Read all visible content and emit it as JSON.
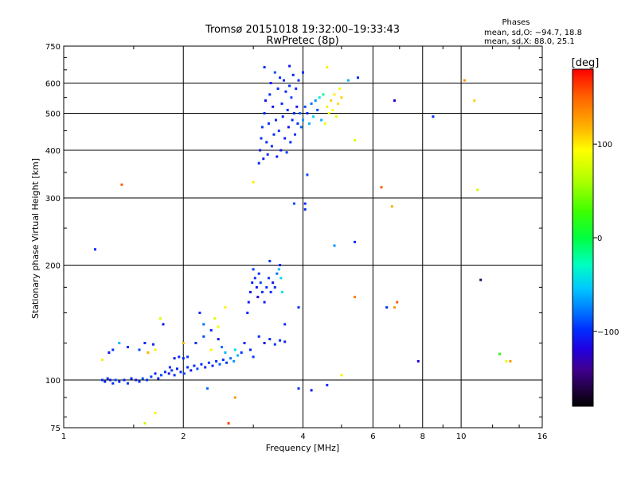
{
  "title": {
    "line1": "Tromsø 20151018 19:32:00–19:33:43",
    "line2": "RwPretec (8p)"
  },
  "phases_box": {
    "heading": "Phases",
    "line_o": "mean, sd,O: −94.7, 18.8",
    "line_x": "mean, sd,X:  88.0, 25.1"
  },
  "colorbar": {
    "unit_label": "[deg]",
    "range": [
      -180,
      180
    ],
    "ticks": [
      {
        "value": 100,
        "label": "100"
      },
      {
        "value": 0,
        "label": "0"
      },
      {
        "value": -100,
        "label": "−100"
      }
    ]
  },
  "chart_data": {
    "type": "scatter",
    "xlabel": "Frequency [MHz]",
    "ylabel": "Stationary phase Virtual Height [km]",
    "x_scale": "log",
    "y_scale": "log",
    "xlim": [
      1,
      16
    ],
    "ylim": [
      75,
      750
    ],
    "grid": true,
    "x_ticks": [
      {
        "value": 1,
        "label": "1"
      },
      {
        "value": 2,
        "label": "2"
      },
      {
        "value": 4,
        "label": "4"
      },
      {
        "value": 6,
        "label": "6"
      },
      {
        "value": 8,
        "label": "8"
      },
      {
        "value": 10,
        "label": "10"
      },
      {
        "value": 16,
        "label": "16"
      }
    ],
    "y_ticks": [
      {
        "value": 75,
        "label": "75"
      },
      {
        "value": 100,
        "label": "100"
      },
      {
        "value": 200,
        "label": "200"
      },
      {
        "value": 300,
        "label": "300"
      },
      {
        "value": 400,
        "label": "400"
      },
      {
        "value": 500,
        "label": "500"
      },
      {
        "value": 600,
        "label": "600"
      },
      {
        "value": 750,
        "label": "750"
      }
    ],
    "color_dimension": "phase [deg]",
    "points": [
      {
        "x": 1.25,
        "y": 100,
        "c": -100
      },
      {
        "x": 1.27,
        "y": 99,
        "c": -105
      },
      {
        "x": 1.29,
        "y": 101,
        "c": -95
      },
      {
        "x": 1.31,
        "y": 100,
        "c": -110
      },
      {
        "x": 1.33,
        "y": 98,
        "c": -100
      },
      {
        "x": 1.35,
        "y": 100,
        "c": -90
      },
      {
        "x": 1.38,
        "y": 99,
        "c": -100
      },
      {
        "x": 1.42,
        "y": 100,
        "c": -105
      },
      {
        "x": 1.45,
        "y": 98,
        "c": -95
      },
      {
        "x": 1.48,
        "y": 101,
        "c": -100
      },
      {
        "x": 1.52,
        "y": 100,
        "c": -110
      },
      {
        "x": 1.55,
        "y": 99,
        "c": -100
      },
      {
        "x": 1.58,
        "y": 101,
        "c": -85
      },
      {
        "x": 1.62,
        "y": 100,
        "c": -100
      },
      {
        "x": 1.66,
        "y": 102,
        "c": -95
      },
      {
        "x": 1.7,
        "y": 104,
        "c": -105
      },
      {
        "x": 1.73,
        "y": 101,
        "c": -100
      },
      {
        "x": 1.76,
        "y": 103,
        "c": -90
      },
      {
        "x": 1.8,
        "y": 105,
        "c": -100
      },
      {
        "x": 1.84,
        "y": 104,
        "c": -110
      },
      {
        "x": 1.87,
        "y": 106,
        "c": -95
      },
      {
        "x": 1.9,
        "y": 103,
        "c": -100
      },
      {
        "x": 1.93,
        "y": 107,
        "c": -105
      },
      {
        "x": 1.97,
        "y": 105,
        "c": -100
      },
      {
        "x": 2.01,
        "y": 104,
        "c": -95
      },
      {
        "x": 2.05,
        "y": 108,
        "c": -100
      },
      {
        "x": 2.09,
        "y": 106,
        "c": -110
      },
      {
        "x": 2.13,
        "y": 109,
        "c": -100
      },
      {
        "x": 2.17,
        "y": 107,
        "c": -90
      },
      {
        "x": 2.22,
        "y": 110,
        "c": -100
      },
      {
        "x": 2.27,
        "y": 108,
        "c": -105
      },
      {
        "x": 2.32,
        "y": 111,
        "c": -95
      },
      {
        "x": 2.37,
        "y": 109,
        "c": -100
      },
      {
        "x": 2.42,
        "y": 112,
        "c": -100
      },
      {
        "x": 2.47,
        "y": 110,
        "c": -85
      },
      {
        "x": 2.52,
        "y": 113,
        "c": -100
      },
      {
        "x": 2.57,
        "y": 111,
        "c": -95
      },
      {
        "x": 2.63,
        "y": 114,
        "c": -80
      },
      {
        "x": 2.68,
        "y": 112,
        "c": -70
      },
      {
        "x": 2.74,
        "y": 116,
        "c": -60
      },
      {
        "x": 1.9,
        "y": 114,
        "c": -110
      },
      {
        "x": 1.95,
        "y": 115,
        "c": -100
      },
      {
        "x": 2.0,
        "y": 114,
        "c": -105
      },
      {
        "x": 2.05,
        "y": 115,
        "c": -95
      },
      {
        "x": 1.3,
        "y": 118,
        "c": -110
      },
      {
        "x": 1.38,
        "y": 125,
        "c": -60
      },
      {
        "x": 1.45,
        "y": 122,
        "c": -100
      },
      {
        "x": 1.55,
        "y": 120,
        "c": -90
      },
      {
        "x": 1.6,
        "y": 125,
        "c": -100
      },
      {
        "x": 1.68,
        "y": 124,
        "c": -100
      },
      {
        "x": 1.75,
        "y": 145,
        "c": 80
      },
      {
        "x": 1.78,
        "y": 140,
        "c": -110
      },
      {
        "x": 2.15,
        "y": 125,
        "c": -100
      },
      {
        "x": 2.25,
        "y": 130,
        "c": -90
      },
      {
        "x": 2.35,
        "y": 135,
        "c": -100
      },
      {
        "x": 2.45,
        "y": 128,
        "c": -110
      },
      {
        "x": 2.5,
        "y": 122,
        "c": -80
      },
      {
        "x": 2.55,
        "y": 118,
        "c": -60
      },
      {
        "x": 2.7,
        "y": 120,
        "c": -50
      },
      {
        "x": 2.8,
        "y": 118,
        "c": -95
      },
      {
        "x": 2.85,
        "y": 125,
        "c": -100
      },
      {
        "x": 2.9,
        "y": 150,
        "c": -100
      },
      {
        "x": 2.92,
        "y": 160,
        "c": -105
      },
      {
        "x": 2.95,
        "y": 170,
        "c": -110
      },
      {
        "x": 2.98,
        "y": 180,
        "c": -100
      },
      {
        "x": 3.0,
        "y": 195,
        "c": -95
      },
      {
        "x": 3.03,
        "y": 185,
        "c": -100
      },
      {
        "x": 3.06,
        "y": 175,
        "c": -110
      },
      {
        "x": 3.08,
        "y": 165,
        "c": -120
      },
      {
        "x": 3.1,
        "y": 190,
        "c": -100
      },
      {
        "x": 3.13,
        "y": 180,
        "c": -90
      },
      {
        "x": 3.16,
        "y": 170,
        "c": -100
      },
      {
        "x": 3.2,
        "y": 160,
        "c": -105
      },
      {
        "x": 3.24,
        "y": 175,
        "c": -100
      },
      {
        "x": 3.28,
        "y": 185,
        "c": -95
      },
      {
        "x": 3.32,
        "y": 170,
        "c": -100
      },
      {
        "x": 3.36,
        "y": 180,
        "c": -110
      },
      {
        "x": 3.4,
        "y": 175,
        "c": -100
      },
      {
        "x": 3.44,
        "y": 190,
        "c": -80
      },
      {
        "x": 3.48,
        "y": 195,
        "c": -60
      },
      {
        "x": 3.52,
        "y": 185,
        "c": -50
      },
      {
        "x": 3.55,
        "y": 170,
        "c": -40
      },
      {
        "x": 3.5,
        "y": 200,
        "c": -100
      },
      {
        "x": 3.3,
        "y": 205,
        "c": -100
      },
      {
        "x": 3.1,
        "y": 130,
        "c": -100
      },
      {
        "x": 3.2,
        "y": 125,
        "c": -110
      },
      {
        "x": 3.3,
        "y": 128,
        "c": -100
      },
      {
        "x": 3.4,
        "y": 124,
        "c": -95
      },
      {
        "x": 3.5,
        "y": 127,
        "c": -100
      },
      {
        "x": 3.6,
        "y": 126,
        "c": -105
      },
      {
        "x": 2.95,
        "y": 120,
        "c": -100
      },
      {
        "x": 3.0,
        "y": 115,
        "c": -95
      },
      {
        "x": 3.1,
        "y": 370,
        "c": -100
      },
      {
        "x": 3.12,
        "y": 400,
        "c": -110
      },
      {
        "x": 3.14,
        "y": 430,
        "c": -100
      },
      {
        "x": 3.16,
        "y": 460,
        "c": -95
      },
      {
        "x": 3.18,
        "y": 380,
        "c": -105
      },
      {
        "x": 3.2,
        "y": 500,
        "c": -100
      },
      {
        "x": 3.22,
        "y": 540,
        "c": -110
      },
      {
        "x": 3.24,
        "y": 420,
        "c": -100
      },
      {
        "x": 3.26,
        "y": 390,
        "c": -100
      },
      {
        "x": 3.28,
        "y": 470,
        "c": -95
      },
      {
        "x": 3.3,
        "y": 560,
        "c": -100
      },
      {
        "x": 3.32,
        "y": 600,
        "c": -105
      },
      {
        "x": 3.34,
        "y": 410,
        "c": -100
      },
      {
        "x": 3.36,
        "y": 520,
        "c": -110
      },
      {
        "x": 3.38,
        "y": 440,
        "c": -100
      },
      {
        "x": 3.4,
        "y": 640,
        "c": -90
      },
      {
        "x": 3.42,
        "y": 480,
        "c": -100
      },
      {
        "x": 3.44,
        "y": 385,
        "c": -105
      },
      {
        "x": 3.46,
        "y": 580,
        "c": -100
      },
      {
        "x": 3.48,
        "y": 450,
        "c": -95
      },
      {
        "x": 3.5,
        "y": 620,
        "c": -100
      },
      {
        "x": 3.52,
        "y": 400,
        "c": -110
      },
      {
        "x": 3.54,
        "y": 530,
        "c": -100
      },
      {
        "x": 3.56,
        "y": 490,
        "c": -100
      },
      {
        "x": 3.58,
        "y": 610,
        "c": -100
      },
      {
        "x": 3.6,
        "y": 430,
        "c": -105
      },
      {
        "x": 3.62,
        "y": 570,
        "c": -100
      },
      {
        "x": 3.64,
        "y": 395,
        "c": -95
      },
      {
        "x": 3.66,
        "y": 510,
        "c": -100
      },
      {
        "x": 3.68,
        "y": 460,
        "c": -110
      },
      {
        "x": 3.7,
        "y": 590,
        "c": -100
      },
      {
        "x": 3.72,
        "y": 420,
        "c": -100
      },
      {
        "x": 3.74,
        "y": 550,
        "c": -90
      },
      {
        "x": 3.76,
        "y": 480,
        "c": -100
      },
      {
        "x": 3.78,
        "y": 630,
        "c": -105
      },
      {
        "x": 3.8,
        "y": 500,
        "c": -100
      },
      {
        "x": 3.82,
        "y": 440,
        "c": -95
      },
      {
        "x": 3.84,
        "y": 580,
        "c": -100
      },
      {
        "x": 3.86,
        "y": 520,
        "c": -110
      },
      {
        "x": 3.88,
        "y": 470,
        "c": -100
      },
      {
        "x": 3.9,
        "y": 610,
        "c": -100
      },
      {
        "x": 3.93,
        "y": 500,
        "c": -85
      },
      {
        "x": 3.96,
        "y": 460,
        "c": -80
      },
      {
        "x": 4.0,
        "y": 480,
        "c": -70
      },
      {
        "x": 4.05,
        "y": 520,
        "c": -90
      },
      {
        "x": 4.1,
        "y": 500,
        "c": -100
      },
      {
        "x": 4.15,
        "y": 470,
        "c": -60
      },
      {
        "x": 4.2,
        "y": 530,
        "c": -80
      },
      {
        "x": 4.25,
        "y": 490,
        "c": -50
      },
      {
        "x": 4.3,
        "y": 540,
        "c": -70
      },
      {
        "x": 4.35,
        "y": 510,
        "c": -90
      },
      {
        "x": 4.4,
        "y": 550,
        "c": -40
      },
      {
        "x": 4.45,
        "y": 480,
        "c": -60
      },
      {
        "x": 4.5,
        "y": 560,
        "c": -20
      },
      {
        "x": 4.55,
        "y": 470,
        "c": 90
      },
      {
        "x": 4.6,
        "y": 520,
        "c": 100
      },
      {
        "x": 4.65,
        "y": 500,
        "c": 90
      },
      {
        "x": 4.7,
        "y": 540,
        "c": 110
      },
      {
        "x": 4.75,
        "y": 510,
        "c": 95
      },
      {
        "x": 4.8,
        "y": 560,
        "c": 100
      },
      {
        "x": 4.85,
        "y": 490,
        "c": 80
      },
      {
        "x": 4.9,
        "y": 530,
        "c": 105
      },
      {
        "x": 4.95,
        "y": 580,
        "c": 90
      },
      {
        "x": 5.0,
        "y": 550,
        "c": 110
      },
      {
        "x": 3.2,
        "y": 660,
        "c": -100
      },
      {
        "x": 3.7,
        "y": 665,
        "c": -110
      },
      {
        "x": 4.0,
        "y": 640,
        "c": -100
      },
      {
        "x": 4.6,
        "y": 660,
        "c": 100
      },
      {
        "x": 5.2,
        "y": 610,
        "c": -60
      },
      {
        "x": 5.5,
        "y": 620,
        "c": -100
      },
      {
        "x": 1.2,
        "y": 220,
        "c": -100
      },
      {
        "x": 1.4,
        "y": 325,
        "c": 150
      },
      {
        "x": 3.0,
        "y": 330,
        "c": 100
      },
      {
        "x": 3.8,
        "y": 290,
        "c": -90
      },
      {
        "x": 4.05,
        "y": 290,
        "c": -100
      },
      {
        "x": 4.05,
        "y": 280,
        "c": -100
      },
      {
        "x": 4.1,
        "y": 345,
        "c": -90
      },
      {
        "x": 4.8,
        "y": 225,
        "c": -70
      },
      {
        "x": 5.4,
        "y": 230,
        "c": -100
      },
      {
        "x": 6.3,
        "y": 320,
        "c": 150
      },
      {
        "x": 6.7,
        "y": 285,
        "c": 120
      },
      {
        "x": 6.8,
        "y": 540,
        "c": -120
      },
      {
        "x": 8.5,
        "y": 490,
        "c": -100
      },
      {
        "x": 10.2,
        "y": 610,
        "c": 130
      },
      {
        "x": 10.8,
        "y": 540,
        "c": 110
      },
      {
        "x": 11.0,
        "y": 315,
        "c": 70
      },
      {
        "x": 11.2,
        "y": 183,
        "c": -150
      },
      {
        "x": 5.4,
        "y": 425,
        "c": 80
      },
      {
        "x": 3.6,
        "y": 140,
        "c": -100
      },
      {
        "x": 3.9,
        "y": 155,
        "c": -100
      },
      {
        "x": 5.4,
        "y": 165,
        "c": 140
      },
      {
        "x": 6.5,
        "y": 155,
        "c": -100
      },
      {
        "x": 6.9,
        "y": 160,
        "c": 150
      },
      {
        "x": 6.8,
        "y": 155,
        "c": 130
      },
      {
        "x": 7.8,
        "y": 112,
        "c": -120
      },
      {
        "x": 12.5,
        "y": 117,
        "c": 20
      },
      {
        "x": 13.0,
        "y": 112,
        "c": 80
      },
      {
        "x": 13.3,
        "y": 112,
        "c": 130
      },
      {
        "x": 3.9,
        "y": 95,
        "c": -100
      },
      {
        "x": 4.2,
        "y": 94,
        "c": -110
      },
      {
        "x": 4.6,
        "y": 97,
        "c": -100
      },
      {
        "x": 5.0,
        "y": 103,
        "c": 100
      },
      {
        "x": 2.3,
        "y": 95,
        "c": -80
      },
      {
        "x": 2.7,
        "y": 90,
        "c": 130
      },
      {
        "x": 2.6,
        "y": 77,
        "c": 160
      },
      {
        "x": 1.6,
        "y": 77,
        "c": 70
      },
      {
        "x": 1.65,
        "y": 74,
        "c": 90
      },
      {
        "x": 1.7,
        "y": 82,
        "c": 100
      },
      {
        "x": 1.85,
        "y": 108,
        "c": -100
      },
      {
        "x": 2.2,
        "y": 150,
        "c": -100
      },
      {
        "x": 2.25,
        "y": 140,
        "c": -80
      },
      {
        "x": 2.4,
        "y": 145,
        "c": 80
      },
      {
        "x": 2.55,
        "y": 155,
        "c": 100
      },
      {
        "x": 2.45,
        "y": 138,
        "c": 90
      },
      {
        "x": 2.35,
        "y": 120,
        "c": 100
      },
      {
        "x": 2.0,
        "y": 125,
        "c": 120
      },
      {
        "x": 1.7,
        "y": 120,
        "c": 100
      },
      {
        "x": 1.63,
        "y": 118,
        "c": 120
      },
      {
        "x": 1.33,
        "y": 120,
        "c": -100
      },
      {
        "x": 1.25,
        "y": 113,
        "c": 100
      }
    ]
  }
}
